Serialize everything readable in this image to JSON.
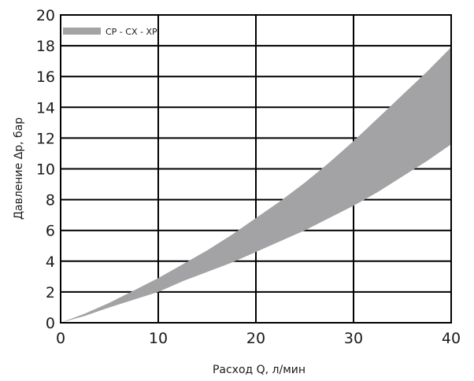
{
  "chart_data": {
    "type": "area",
    "title": "",
    "xlabel": "Расход Q, л/мин",
    "ylabel": "Давление Δp, бар",
    "xlim": [
      0,
      40
    ],
    "ylim": [
      0,
      20
    ],
    "x_ticks": [
      "0",
      "10",
      "20",
      "30",
      "40"
    ],
    "y_ticks": [
      "0",
      "2",
      "4",
      "6",
      "8",
      "10",
      "12",
      "14",
      "16",
      "18",
      "20"
    ],
    "grid": true,
    "legend_position": "top-left",
    "series": [
      {
        "name": "CP - CX - XP",
        "color": "#a3a3a5",
        "x": [
          0,
          2.5,
          5,
          7.5,
          10,
          12.5,
          15,
          17.5,
          20,
          22.5,
          25,
          27.5,
          30,
          32.5,
          35,
          37.5,
          40
        ],
        "upper": [
          0,
          0.6,
          1.3,
          2.1,
          2.9,
          3.8,
          4.7,
          5.7,
          6.8,
          7.9,
          9.1,
          10.4,
          11.8,
          13.3,
          14.8,
          16.3,
          17.9
        ],
        "lower": [
          0,
          0.45,
          1.0,
          1.5,
          2.0,
          2.7,
          3.3,
          3.9,
          4.6,
          5.3,
          6.0,
          6.8,
          7.6,
          8.5,
          9.5,
          10.5,
          11.6
        ]
      }
    ]
  }
}
